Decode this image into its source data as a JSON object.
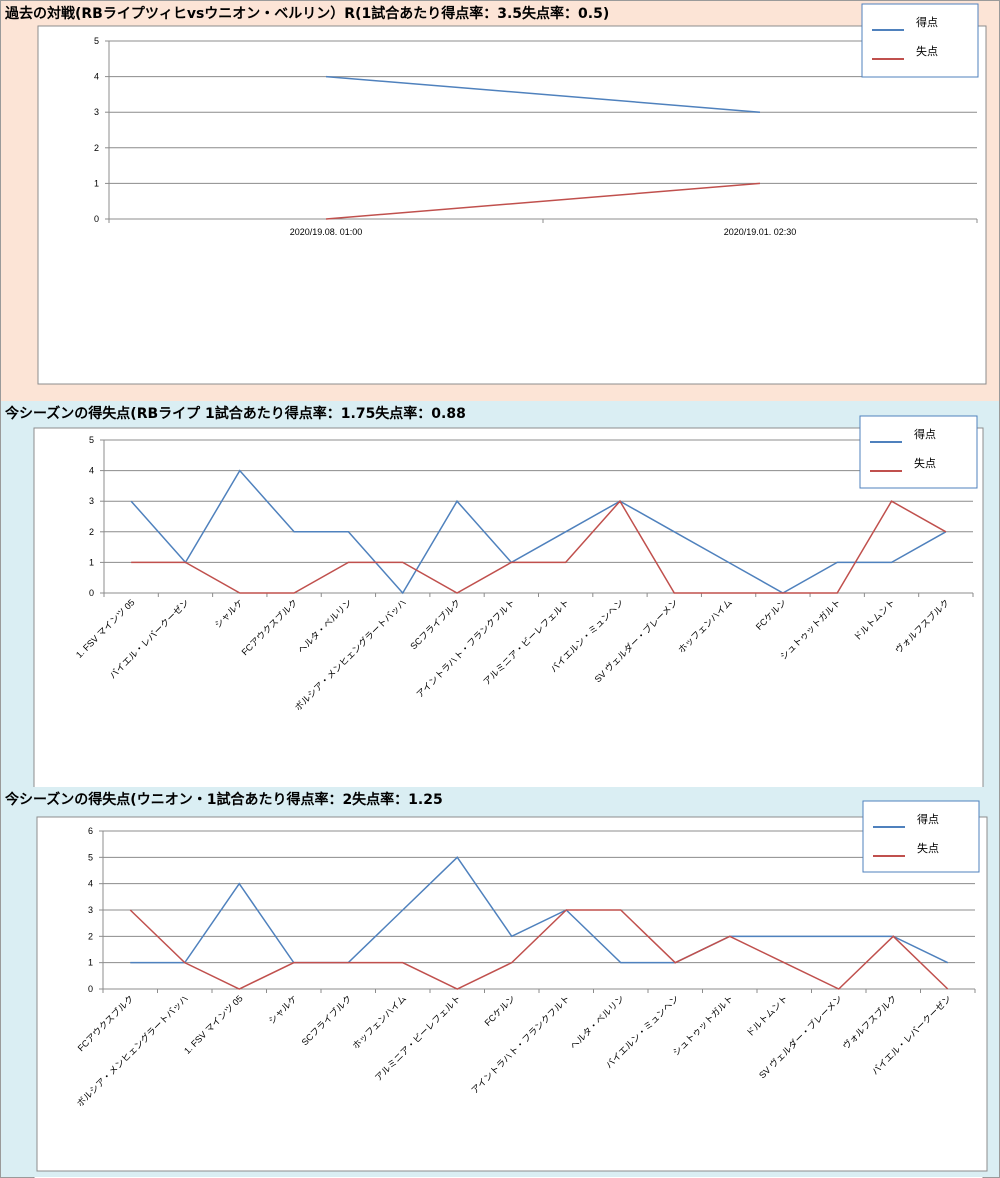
{
  "charts": [
    {
      "title": "過去の対戦(RBライプツィヒvsウニオン・ベルリン）R(1試合あたり得点率：3.5失点率：0.5)",
      "chart_data": {
        "type": "line",
        "categories": [
          "2020/19.08. 01:00",
          "2020/19.01. 02:30"
        ],
        "series": [
          {
            "name": "得点",
            "values": [
              4,
              3
            ],
            "color": "#4f81bd"
          },
          {
            "name": "失点",
            "values": [
              0,
              1
            ],
            "color": "#c0504d"
          }
        ],
        "ylim": [
          0,
          5
        ],
        "yticks": [
          0,
          1,
          2,
          3,
          4,
          5
        ],
        "grid": true,
        "legend": "top-right",
        "xlabel_rotation": 0
      }
    },
    {
      "title": "今シーズンの得失点(RBライプ 1試合あたり得点率：1.75失点率：0.88",
      "chart_data": {
        "type": "line",
        "categories": [
          "1. FSV マインツ 05",
          "バイエル・レバークーゼン",
          "シャルケ",
          "FCアウクスブルク",
          "ヘルタ・ベルリン",
          "ボルシア・メンヒェングラートバッハ",
          "SCフライブルク",
          "アイントラハト・フランクフルト",
          "アルミニア・ビーレフェルト",
          "バイエルン・ミュンヘン",
          "SV ヴェルダー・ブレーメン",
          "ホッフェンハイム",
          "FCケルン",
          "シュトゥットガルト",
          "ドルトムント",
          "ヴォルフスブルク"
        ],
        "series": [
          {
            "name": "得点",
            "values": [
              3,
              1,
              4,
              2,
              2,
              0,
              3,
              1,
              2,
              3,
              2,
              1,
              0,
              1,
              1,
              2
            ],
            "color": "#4f81bd"
          },
          {
            "name": "失点",
            "values": [
              1,
              1,
              0,
              0,
              1,
              1,
              0,
              1,
              1,
              3,
              0,
              0,
              0,
              0,
              3,
              2
            ],
            "color": "#c0504d"
          }
        ],
        "ylim": [
          0,
          5
        ],
        "yticks": [
          0,
          1,
          2,
          3,
          4,
          5
        ],
        "grid": true,
        "legend": "top-right",
        "xlabel_rotation": -45
      }
    },
    {
      "title": "今シーズンの得失点(ウニオン・1試合あたり得点率：2失点率：1.25",
      "chart_data": {
        "type": "line",
        "categories": [
          "FCアウクスブルク",
          "ボルシア・メンヒェングラートバッハ",
          "1. FSV マインツ 05",
          "シャルケ",
          "SCフライブルク",
          "ホッフェンハイム",
          "アルミニア・ビーレフェルト",
          "FCケルン",
          "アイントラハト・フランクフルト",
          "ヘルタ・ベルリン",
          "バイエルン・ミュンヘン",
          "シュトゥットガルト",
          "ドルトムント",
          "SV ヴェルダー・ブレーメン",
          "ヴォルフスブルク",
          "バイエル・レバークーゼン"
        ],
        "series": [
          {
            "name": "得点",
            "values": [
              1,
              1,
              4,
              1,
              1,
              3,
              5,
              2,
              3,
              1,
              1,
              2,
              2,
              2,
              2,
              1
            ],
            "color": "#4f81bd"
          },
          {
            "name": "失点",
            "values": [
              3,
              1,
              0,
              1,
              1,
              1,
              0,
              1,
              3,
              3,
              1,
              2,
              1,
              0,
              2,
              0
            ],
            "color": "#c0504d"
          }
        ],
        "ylim": [
          0,
          6
        ],
        "yticks": [
          0,
          1,
          2,
          3,
          4,
          5,
          6
        ],
        "grid": true,
        "legend": "top-right",
        "xlabel_rotation": -45
      }
    }
  ]
}
